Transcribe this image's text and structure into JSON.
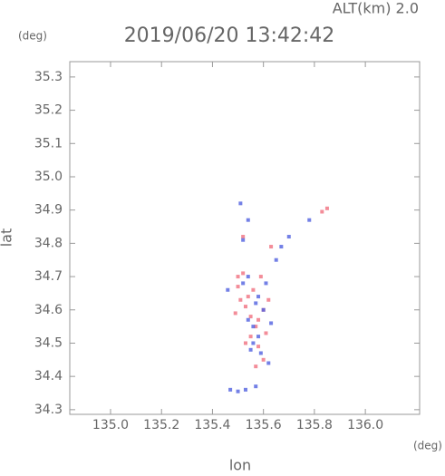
{
  "chart_data": {
    "type": "scatter",
    "title": "2019/06/20 13:42:42",
    "subtitle": "ALT(km) 2.0",
    "x_label": "lon",
    "y_label": "lat",
    "x_unit": "(deg)",
    "y_unit": "(deg)",
    "xlim": [
      134.84,
      136.213
    ],
    "ylim": [
      34.286,
      35.346
    ],
    "xticks": [
      {
        "value": 135.0,
        "label": "135.0"
      },
      135.2,
      135.4,
      135.6,
      135.8,
      {
        "value": 136.0,
        "label": "136.0"
      }
    ],
    "yticks": [
      34.3,
      34.4,
      34.5,
      34.6,
      34.7,
      34.8,
      34.9,
      {
        "value": 35.0,
        "label": "35.0"
      },
      35.1,
      35.2,
      35.3
    ],
    "series": [
      {
        "color": "#f07080",
        "x": [
          135.85,
          135.83,
          135.63,
          135.52,
          135.5,
          135.51,
          135.53,
          135.55,
          135.6,
          135.57,
          135.55,
          135.58,
          135.57,
          135.6,
          135.53,
          135.62,
          135.49,
          135.56,
          135.59,
          135.52,
          135.54,
          135.58,
          135.61,
          135.5
        ],
        "y": [
          34.905,
          34.895,
          34.79,
          34.71,
          34.67,
          34.63,
          34.61,
          34.58,
          34.6,
          34.55,
          34.52,
          34.49,
          34.43,
          34.45,
          34.5,
          34.63,
          34.59,
          34.66,
          34.7,
          34.82,
          34.64,
          34.57,
          34.53,
          34.7
        ]
      },
      {
        "color": "#5060e0",
        "x": [
          135.51,
          135.54,
          135.52,
          135.7,
          135.78,
          135.67,
          135.65,
          135.46,
          135.52,
          135.58,
          135.6,
          135.54,
          135.56,
          135.58,
          135.55,
          135.59,
          135.62,
          135.47,
          135.5,
          135.53,
          135.57,
          135.61,
          135.54,
          135.63,
          135.57,
          135.56
        ],
        "y": [
          34.92,
          34.87,
          34.81,
          34.82,
          34.87,
          34.79,
          34.75,
          34.66,
          34.68,
          34.64,
          34.6,
          34.57,
          34.55,
          34.52,
          34.48,
          34.47,
          34.44,
          34.36,
          34.355,
          34.36,
          34.37,
          34.68,
          34.7,
          34.56,
          34.62,
          34.5
        ]
      }
    ]
  }
}
